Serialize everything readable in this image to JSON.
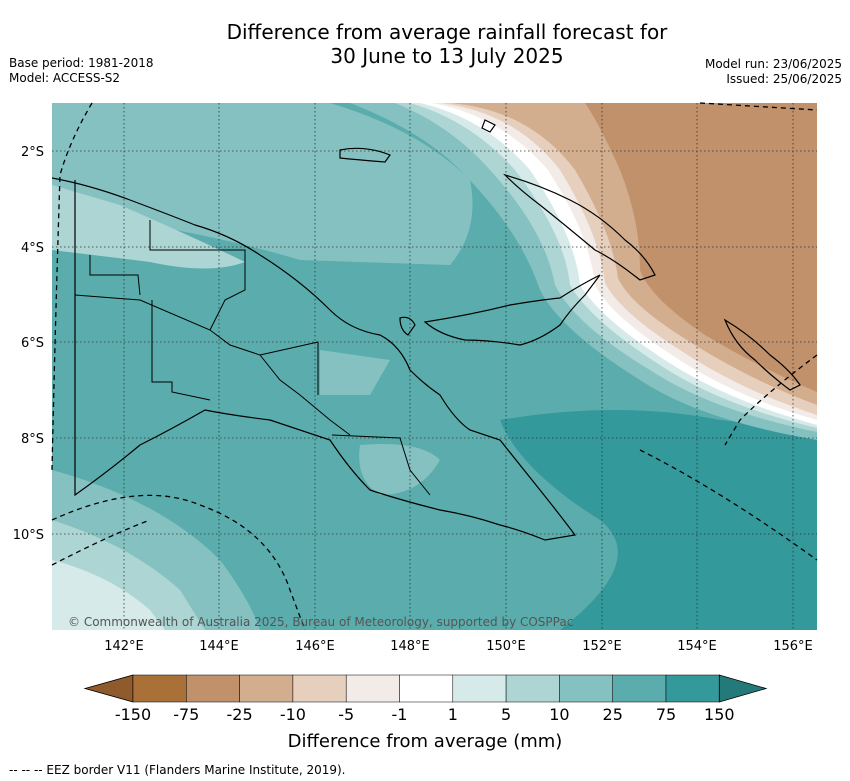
{
  "title_line1": "Difference from average rainfall forecast for",
  "title_line2": "30 June to 13 July 2025",
  "meta_left": [
    "Base period: 1981-2018",
    "Model: ACCESS-S2"
  ],
  "meta_right": [
    "Model run: 23/06/2025",
    "Issued: 25/06/2025"
  ],
  "lat_labels": [
    "2°S",
    "4°S",
    "6°S",
    "8°S",
    "10°S"
  ],
  "lon_labels": [
    "142°E",
    "144°E",
    "146°E",
    "148°E",
    "150°E",
    "152°E",
    "154°E",
    "156°E"
  ],
  "copyright": "© Commonwealth of Australia 2025, Bureau of Meteorology, supported by COSPPac",
  "colorbar": {
    "title": "Difference from average (mm)",
    "ticks": [
      "-150",
      "-75",
      "-25",
      "-10",
      "-5",
      "-1",
      "1",
      "5",
      "10",
      "25",
      "75",
      "150"
    ],
    "colors": [
      "#8f5a2c",
      "#a97038",
      "#c0916a",
      "#d3ae8e",
      "#e6cfbd",
      "#f2ebe7",
      "#ffffff",
      "#d6eae9",
      "#acd5d4",
      "#85c1c0",
      "#5aadac",
      "#33999a",
      "#247a78"
    ]
  },
  "footer": "-- -- -- EEZ border V11 (Flanders Marine Institute, 2019)."
}
